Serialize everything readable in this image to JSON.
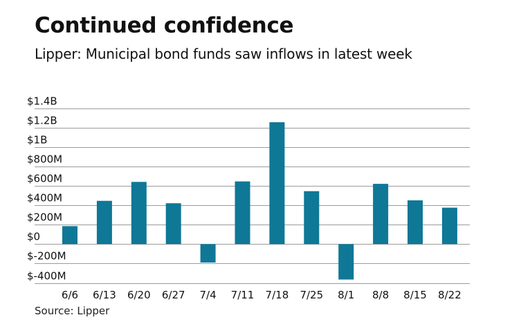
{
  "header": {
    "title": "Continued confidence",
    "subtitle": "Lipper: Municipal bond funds saw inflows in latest week"
  },
  "footer": {
    "source": "Source: Lipper"
  },
  "colors": {
    "bar": "#0e7896",
    "grid": "#9a9a9a",
    "text": "#111111"
  },
  "chart_data": {
    "type": "bar",
    "title": "Continued confidence",
    "subtitle": "Lipper: Municipal bond funds saw inflows in latest week",
    "xlabel": "",
    "ylabel": "",
    "units": "millions of USD",
    "categories": [
      "6/6",
      "6/13",
      "6/20",
      "6/27",
      "7/4",
      "7/11",
      "7/18",
      "7/25",
      "8/1",
      "8/8",
      "8/15",
      "8/22"
    ],
    "values": [
      185,
      445,
      640,
      420,
      -190,
      645,
      1255,
      545,
      -365,
      620,
      450,
      375
    ],
    "ylim": [
      -400,
      1400
    ],
    "yticks": [
      1400,
      1200,
      1000,
      800,
      600,
      400,
      200,
      0,
      -200,
      -400
    ],
    "ytick_labels": [
      "$1.4B",
      "$1.2B",
      "$1B",
      "$800M",
      "$600M",
      "$400M",
      "$200M",
      "$0",
      "$-200M",
      "$-400M"
    ],
    "grid": true,
    "legend": "none",
    "source": "Source: Lipper"
  }
}
